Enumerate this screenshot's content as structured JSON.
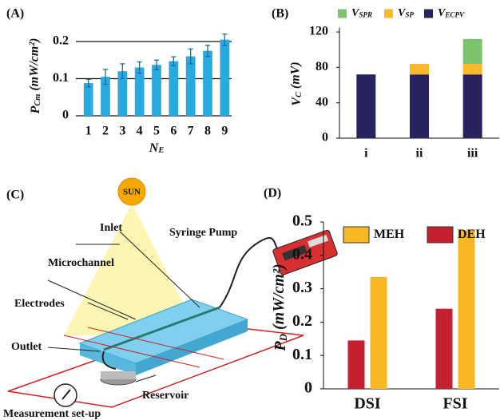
{
  "chart_data": [
    {
      "type": "bar",
      "panel_label": "(A)",
      "ylabel": {
        "main": "P",
        "sub": "Cm",
        "unit": " (mW/cm²)"
      },
      "xlabel": {
        "main": "N",
        "sub": "E"
      },
      "categories": [
        "1",
        "2",
        "3",
        "4",
        "5",
        "6",
        "7",
        "8",
        "9"
      ],
      "values": [
        0.088,
        0.105,
        0.12,
        0.13,
        0.137,
        0.147,
        0.16,
        0.175,
        0.205
      ],
      "errors": [
        0.01,
        0.02,
        0.02,
        0.015,
        0.013,
        0.012,
        0.02,
        0.015,
        0.015
      ],
      "color": "#29a9e0",
      "ylim": [
        0,
        0.22
      ],
      "yticks": [
        0,
        0.1,
        0.2
      ],
      "grid": true
    },
    {
      "type": "bar",
      "stacked": true,
      "panel_label": "(B)",
      "ylabel": {
        "main": "V",
        "sub": "C",
        "unit": " (mV)"
      },
      "categories": [
        "i",
        "ii",
        "iii"
      ],
      "series": [
        {
          "name": "V",
          "subscript": "ECPV",
          "color": "#26235e",
          "values": [
            72,
            72,
            72
          ]
        },
        {
          "name": "V",
          "subscript": "SP",
          "color": "#fbb829",
          "values": [
            0,
            12,
            12
          ]
        },
        {
          "name": "V",
          "subscript": "SPR",
          "color": "#7dc36b",
          "values": [
            0,
            0,
            28
          ]
        }
      ],
      "ylim": [
        0,
        125
      ],
      "yticks": [
        0,
        40,
        80,
        120
      ],
      "grid": false
    },
    {
      "type": "bar",
      "panel_label": "(D)",
      "ylabel": {
        "main": "P",
        "sub": "D",
        "unit": " (mW/cm²)"
      },
      "categories": [
        "DSI",
        "FSI"
      ],
      "series": [
        {
          "name": "DEH",
          "color": "#c4202f",
          "values": [
            0.145,
            0.24
          ]
        },
        {
          "name": "MEH",
          "color": "#f9b721",
          "values": [
            0.335,
            0.475
          ]
        }
      ],
      "legend_order": [
        1,
        0
      ],
      "ylim": [
        0,
        0.5
      ],
      "yticks": [
        0,
        0.1,
        0.2,
        0.3,
        0.4,
        0.5
      ],
      "grid": false
    }
  ],
  "diagram": {
    "panel_label": "(C)",
    "sun": "SUN",
    "pump": "Syringe Pump",
    "inlet": "Inlet",
    "microchannel": "Microchannel",
    "electrodes": "Electrodes",
    "outlet": "Outlet",
    "reservoir": "Reservoir",
    "measurement": "Measurement set-up"
  }
}
